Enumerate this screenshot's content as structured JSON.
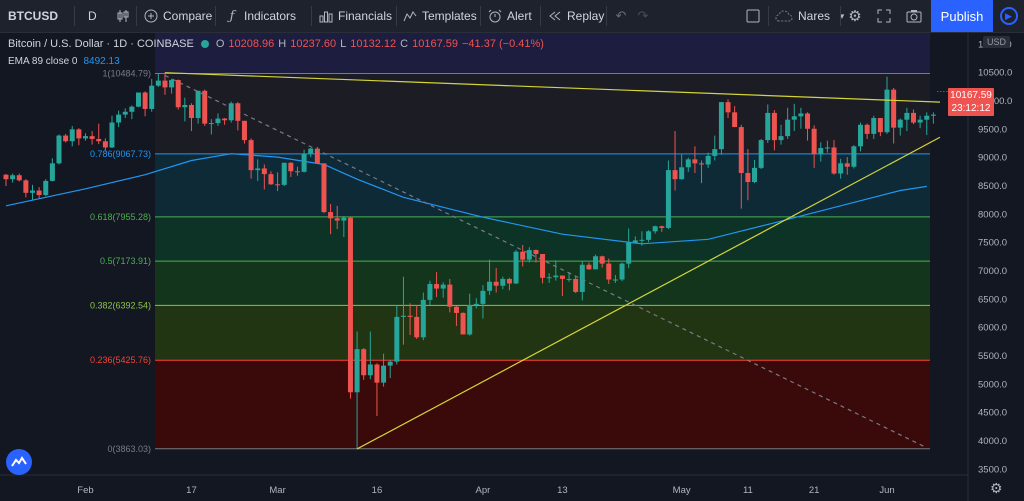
{
  "toolbar": {
    "symbol": "BTCUSD",
    "interval": "D",
    "compare": "Compare",
    "indicators": "Indicators",
    "financials": "Financials",
    "templates": "Templates",
    "alert": "Alert",
    "replay": "Replay",
    "layout_name": "Nares",
    "publish": "Publish"
  },
  "legend": {
    "title": "Bitcoin / U.S. Dollar · 1D · COINBASE",
    "o_label": "O",
    "o": "10208.96",
    "h_label": "H",
    "h": "10237.60",
    "l_label": "L",
    "l": "10132.12",
    "c_label": "C",
    "c": "10167.59",
    "change": "−41.37 (−0.41%)",
    "ema_label": "EMA 89 close 0",
    "ema_value": "8492.13"
  },
  "price_label": {
    "price": "10167.59",
    "countdown": "23:12:12",
    "currency": "USD"
  },
  "colors": {
    "up": "#26a69a",
    "down": "#ef5350",
    "ema": "#2196f3",
    "trendline": "#d4d43a",
    "background": "#131722",
    "accent": "#2962ff"
  },
  "chart_data": {
    "type": "candlestick",
    "symbol": "BTCUSD",
    "exchange": "COINBASE",
    "interval": "1D",
    "ylim": [
      3400,
      11200
    ],
    "y_ticks": [
      3500,
      4000,
      4500,
      5000,
      5500,
      6000,
      6500,
      7000,
      7500,
      8000,
      8500,
      9000,
      9500,
      10000,
      10500,
      11000
    ],
    "x_ticks": [
      {
        "label": "Feb",
        "date": "2020-02-01"
      },
      {
        "label": "17",
        "date": "2020-02-17"
      },
      {
        "label": "Mar",
        "date": "2020-03-01"
      },
      {
        "label": "16",
        "date": "2020-03-16"
      },
      {
        "label": "Apr",
        "date": "2020-04-01"
      },
      {
        "label": "13",
        "date": "2020-04-13"
      },
      {
        "label": "May",
        "date": "2020-05-01"
      },
      {
        "label": "11",
        "date": "2020-05-11"
      },
      {
        "label": "21",
        "date": "2020-05-21"
      },
      {
        "label": "Jun",
        "date": "2020-06-01"
      }
    ],
    "x_range": [
      "2020-01-20",
      "2020-06-09"
    ],
    "fibonacci": [
      {
        "label": "1(10484.79)",
        "level": 10484.79,
        "color": "#787b86"
      },
      {
        "label": "0.786(9067.73)",
        "level": 9067.73,
        "color": "#2196f3"
      },
      {
        "label": "0.618(7955.28)",
        "level": 7955.28,
        "color": "#4caf50"
      },
      {
        "label": "0.5(7173.91)",
        "level": 7173.91,
        "color": "#4caf50"
      },
      {
        "label": "0.382(6392.54)",
        "level": 6392.54,
        "color": "#8bc34a"
      },
      {
        "label": "0.236(5425.76)",
        "level": 5425.76,
        "color": "#f44336"
      },
      {
        "label": "0(3863.03)",
        "level": 3863.03,
        "color": "#787b86"
      }
    ],
    "trendlines": [
      {
        "from": [
          "2020-02-13",
          10500
        ],
        "to": [
          "2020-06-09",
          9980
        ],
        "color": "#d4d43a",
        "style": "solid"
      },
      {
        "from": [
          "2020-03-13",
          3860
        ],
        "to": [
          "2020-06-09",
          9360
        ],
        "color": "#d4d43a",
        "style": "solid"
      },
      {
        "from": [
          "2020-02-13",
          10450
        ],
        "to": [
          "2020-06-07",
          3880
        ],
        "color": "#787b86",
        "style": "dashed"
      }
    ],
    "ema": {
      "name": "EMA 89 close 0",
      "points": [
        [
          "2020-01-20",
          8150
        ],
        [
          "2020-02-01",
          8450
        ],
        [
          "2020-02-10",
          8700
        ],
        [
          "2020-02-17",
          8950
        ],
        [
          "2020-02-23",
          9070
        ],
        [
          "2020-03-01",
          9010
        ],
        [
          "2020-03-08",
          8880
        ],
        [
          "2020-03-13",
          8620
        ],
        [
          "2020-03-20",
          8300
        ],
        [
          "2020-04-01",
          7950
        ],
        [
          "2020-04-13",
          7650
        ],
        [
          "2020-04-25",
          7480
        ],
        [
          "2020-05-05",
          7560
        ],
        [
          "2020-05-15",
          7850
        ],
        [
          "2020-05-25",
          8150
        ],
        [
          "2020-06-03",
          8420
        ],
        [
          "2020-06-07",
          8492.13
        ]
      ]
    },
    "candles": [
      [
        "2020-01-20",
        8700,
        8710,
        8500,
        8620
      ],
      [
        "2020-01-21",
        8620,
        8720,
        8560,
        8690
      ],
      [
        "2020-01-22",
        8690,
        8720,
        8580,
        8600
      ],
      [
        "2020-01-23",
        8600,
        8620,
        8300,
        8380
      ],
      [
        "2020-01-24",
        8380,
        8520,
        8250,
        8420
      ],
      [
        "2020-01-25",
        8420,
        8480,
        8280,
        8340
      ],
      [
        "2020-01-26",
        8340,
        8620,
        8320,
        8590
      ],
      [
        "2020-01-27",
        8590,
        8990,
        8580,
        8900
      ],
      [
        "2020-01-28",
        8900,
        9410,
        8880,
        9390
      ],
      [
        "2020-01-29",
        9390,
        9420,
        9270,
        9290
      ],
      [
        "2020-01-30",
        9290,
        9560,
        9200,
        9500
      ],
      [
        "2020-01-31",
        9500,
        9520,
        9220,
        9340
      ],
      [
        "2020-02-01",
        9340,
        9430,
        9300,
        9380
      ],
      [
        "2020-02-02",
        9380,
        9470,
        9230,
        9330
      ],
      [
        "2020-02-03",
        9330,
        9600,
        9240,
        9290
      ],
      [
        "2020-02-04",
        9290,
        9340,
        9110,
        9180
      ],
      [
        "2020-02-05",
        9180,
        9740,
        9170,
        9620
      ],
      [
        "2020-02-06",
        9620,
        9830,
        9540,
        9760
      ],
      [
        "2020-02-07",
        9760,
        9870,
        9700,
        9810
      ],
      [
        "2020-02-08",
        9810,
        9920,
        9680,
        9900
      ],
      [
        "2020-02-09",
        9900,
        10150,
        9890,
        10150
      ],
      [
        "2020-02-10",
        10150,
        10170,
        9730,
        9860
      ],
      [
        "2020-02-11",
        9860,
        10390,
        9810,
        10270
      ],
      [
        "2020-02-12",
        10270,
        10480,
        10250,
        10360
      ],
      [
        "2020-02-13",
        10360,
        10500,
        10110,
        10240
      ],
      [
        "2020-02-14",
        10240,
        10390,
        10130,
        10370
      ],
      [
        "2020-02-15",
        10370,
        10380,
        9850,
        9890
      ],
      [
        "2020-02-16",
        9890,
        10060,
        9640,
        9930
      ],
      [
        "2020-02-17",
        9930,
        9960,
        9470,
        9700
      ],
      [
        "2020-02-18",
        9700,
        10180,
        9600,
        10180
      ],
      [
        "2020-02-19",
        10180,
        10200,
        9560,
        9600
      ],
      [
        "2020-02-20",
        9600,
        9680,
        9410,
        9610
      ],
      [
        "2020-02-21",
        9610,
        9780,
        9560,
        9690
      ],
      [
        "2020-02-22",
        9690,
        9700,
        9580,
        9660
      ],
      [
        "2020-02-23",
        9660,
        9990,
        9620,
        9960
      ],
      [
        "2020-02-24",
        9960,
        9980,
        9480,
        9650
      ],
      [
        "2020-02-25",
        9650,
        9650,
        9250,
        9310
      ],
      [
        "2020-02-26",
        9310,
        9340,
        8630,
        8780
      ],
      [
        "2020-02-27",
        8780,
        8970,
        8590,
        8810
      ],
      [
        "2020-02-28",
        8810,
        8880,
        8440,
        8710
      ],
      [
        "2020-02-29",
        8710,
        8760,
        8520,
        8530
      ],
      [
        "2020-03-01",
        8530,
        8740,
        8410,
        8520
      ],
      [
        "2020-03-02",
        8520,
        8910,
        8500,
        8910
      ],
      [
        "2020-03-03",
        8910,
        8920,
        8660,
        8760
      ],
      [
        "2020-03-04",
        8760,
        8840,
        8680,
        8750
      ],
      [
        "2020-03-05",
        8750,
        9140,
        8740,
        9070
      ],
      [
        "2020-03-06",
        9070,
        9170,
        9010,
        9160
      ],
      [
        "2020-03-07",
        9160,
        9190,
        8890,
        8900
      ],
      [
        "2020-03-08",
        8900,
        8900,
        8020,
        8040
      ],
      [
        "2020-03-09",
        8040,
        8180,
        7650,
        7930
      ],
      [
        "2020-03-10",
        7930,
        8150,
        7740,
        7890
      ],
      [
        "2020-03-11",
        7890,
        7970,
        7600,
        7940
      ],
      [
        "2020-03-12",
        7940,
        7950,
        4750,
        4860
      ],
      [
        "2020-03-13",
        4860,
        5930,
        3860,
        5620
      ],
      [
        "2020-03-14",
        5620,
        5640,
        5080,
        5160
      ],
      [
        "2020-03-15",
        5160,
        5930,
        5090,
        5350
      ],
      [
        "2020-03-16",
        5350,
        5370,
        4440,
        5030
      ],
      [
        "2020-03-17",
        5030,
        5540,
        4960,
        5330
      ],
      [
        "2020-03-18",
        5330,
        5430,
        5110,
        5400
      ],
      [
        "2020-03-19",
        5400,
        6400,
        5350,
        6190
      ],
      [
        "2020-03-20",
        6190,
        6900,
        5700,
        6210
      ],
      [
        "2020-03-21",
        6210,
        6430,
        5870,
        6190
      ],
      [
        "2020-03-22",
        6190,
        6400,
        5800,
        5830
      ],
      [
        "2020-03-23",
        5830,
        6620,
        5780,
        6490
      ],
      [
        "2020-03-24",
        6490,
        6830,
        6400,
        6770
      ],
      [
        "2020-03-25",
        6770,
        6980,
        6540,
        6690
      ],
      [
        "2020-03-26",
        6690,
        6800,
        6530,
        6760
      ],
      [
        "2020-03-27",
        6760,
        6860,
        6270,
        6370
      ],
      [
        "2020-03-28",
        6370,
        6390,
        6030,
        6260
      ],
      [
        "2020-03-29",
        6260,
        6270,
        5880,
        5880
      ],
      [
        "2020-03-30",
        5880,
        6600,
        5860,
        6400
      ],
      [
        "2020-03-31",
        6400,
        6520,
        6340,
        6420
      ],
      [
        "2020-04-01",
        6420,
        6750,
        6160,
        6650
      ],
      [
        "2020-04-02",
        6650,
        7200,
        6580,
        6810
      ],
      [
        "2020-04-03",
        6810,
        7050,
        6620,
        6740
      ],
      [
        "2020-04-04",
        6740,
        6900,
        6680,
        6860
      ],
      [
        "2020-04-05",
        6860,
        6880,
        6660,
        6780
      ],
      [
        "2020-04-06",
        6780,
        7370,
        6770,
        7340
      ],
      [
        "2020-04-07",
        7340,
        7460,
        7080,
        7200
      ],
      [
        "2020-04-08",
        7200,
        7420,
        7150,
        7370
      ],
      [
        "2020-04-09",
        7370,
        7380,
        7150,
        7300
      ],
      [
        "2020-04-10",
        7300,
        7300,
        6780,
        6880
      ],
      [
        "2020-04-11",
        6880,
        6960,
        6790,
        6890
      ],
      [
        "2020-04-12",
        6890,
        7190,
        6830,
        6920
      ],
      [
        "2020-04-13",
        6920,
        6920,
        6560,
        6860
      ],
      [
        "2020-04-14",
        6860,
        6980,
        6810,
        6860
      ],
      [
        "2020-04-15",
        6860,
        6920,
        6610,
        6630
      ],
      [
        "2020-04-16",
        6630,
        7170,
        6480,
        7110
      ],
      [
        "2020-04-17",
        7110,
        7150,
        7020,
        7030
      ],
      [
        "2020-04-18",
        7030,
        7290,
        7030,
        7260
      ],
      [
        "2020-04-19",
        7260,
        7270,
        7060,
        7130
      ],
      [
        "2020-04-20",
        7130,
        7220,
        6770,
        6850
      ],
      [
        "2020-04-21",
        6850,
        6930,
        6790,
        6850
      ],
      [
        "2020-04-22",
        6850,
        7150,
        6820,
        7130
      ],
      [
        "2020-04-23",
        7130,
        7750,
        7050,
        7500
      ],
      [
        "2020-04-24",
        7500,
        7610,
        7490,
        7540
      ],
      [
        "2020-04-25",
        7540,
        7700,
        7450,
        7550
      ],
      [
        "2020-04-26",
        7550,
        7720,
        7510,
        7700
      ],
      [
        "2020-04-27",
        7700,
        7800,
        7660,
        7790
      ],
      [
        "2020-04-28",
        7790,
        7800,
        7690,
        7760
      ],
      [
        "2020-04-29",
        7760,
        8950,
        7740,
        8780
      ],
      [
        "2020-04-30",
        8780,
        9470,
        8420,
        8620
      ],
      [
        "2020-05-01",
        8620,
        9060,
        8610,
        8830
      ],
      [
        "2020-05-02",
        8830,
        9000,
        8750,
        8970
      ],
      [
        "2020-05-03",
        8970,
        9200,
        8730,
        8900
      ],
      [
        "2020-05-04",
        8900,
        8950,
        8550,
        8880
      ],
      [
        "2020-05-05",
        8880,
        9090,
        8820,
        9030
      ],
      [
        "2020-05-06",
        9030,
        9390,
        8950,
        9150
      ],
      [
        "2020-05-07",
        9150,
        9980,
        9050,
        9980
      ],
      [
        "2020-05-08",
        9980,
        10030,
        9700,
        9800
      ],
      [
        "2020-05-09",
        9800,
        9910,
        9540,
        9540
      ],
      [
        "2020-05-10",
        9540,
        9580,
        8100,
        8730
      ],
      [
        "2020-05-11",
        8730,
        9150,
        8250,
        8570
      ],
      [
        "2020-05-12",
        8570,
        8960,
        8550,
        8820
      ],
      [
        "2020-05-13",
        8820,
        9330,
        8800,
        9310
      ],
      [
        "2020-05-14",
        9310,
        9940,
        9260,
        9790
      ],
      [
        "2020-05-15",
        9790,
        9840,
        9130,
        9310
      ],
      [
        "2020-05-16",
        9310,
        9580,
        9230,
        9380
      ],
      [
        "2020-05-17",
        9380,
        9880,
        9330,
        9670
      ],
      [
        "2020-05-18",
        9670,
        9950,
        9470,
        9730
      ],
      [
        "2020-05-19",
        9730,
        9880,
        9510,
        9780
      ],
      [
        "2020-05-20",
        9780,
        9800,
        9300,
        9510
      ],
      [
        "2020-05-21",
        9510,
        9570,
        8820,
        9060
      ],
      [
        "2020-05-22",
        9060,
        9270,
        8930,
        9170
      ],
      [
        "2020-05-23",
        9170,
        9300,
        9090,
        9180
      ],
      [
        "2020-05-24",
        9180,
        9310,
        8700,
        8720
      ],
      [
        "2020-05-25",
        8720,
        8980,
        8630,
        8900
      ],
      [
        "2020-05-26",
        8900,
        9010,
        8700,
        8840
      ],
      [
        "2020-05-27",
        8840,
        9220,
        8810,
        9200
      ],
      [
        "2020-05-28",
        9200,
        9620,
        9110,
        9580
      ],
      [
        "2020-05-29",
        9580,
        9600,
        9330,
        9420
      ],
      [
        "2020-05-30",
        9420,
        9740,
        9330,
        9700
      ],
      [
        "2020-05-31",
        9700,
        9700,
        9380,
        9450
      ],
      [
        "2020-06-01",
        9450,
        10430,
        9420,
        10200
      ],
      [
        "2020-06-02",
        10200,
        10230,
        9250,
        9530
      ],
      [
        "2020-06-03",
        9530,
        9690,
        9390,
        9670
      ],
      [
        "2020-06-04",
        9670,
        9880,
        9470,
        9790
      ],
      [
        "2020-06-05",
        9790,
        9850,
        9590,
        9620
      ],
      [
        "2020-06-06",
        9620,
        9740,
        9520,
        9670
      ],
      [
        "2020-06-07",
        9670,
        9800,
        9400,
        9740
      ],
      [
        "2020-06-08",
        9740,
        9800,
        9600,
        9760
      ]
    ]
  }
}
